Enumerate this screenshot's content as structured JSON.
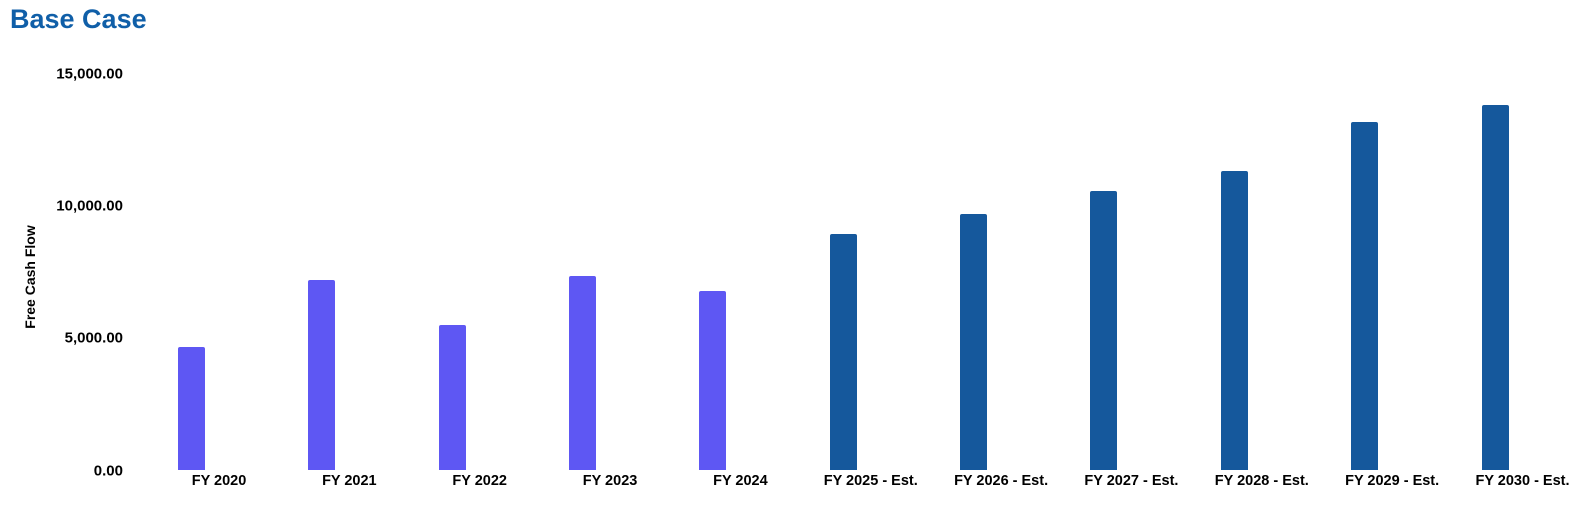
{
  "page": {
    "background_color": "#ffffff"
  },
  "chart_data": {
    "type": "bar",
    "title": "Base Case",
    "title_color": "#105FA8",
    "xlabel": "",
    "ylabel": "Free Cash Flow",
    "ylim": [
      0,
      15000
    ],
    "grid": false,
    "legend": false,
    "y_ticks": [
      {
        "value": 0,
        "label": "0.00"
      },
      {
        "value": 5000,
        "label": "5,000.00"
      },
      {
        "value": 10000,
        "label": "10,000.00"
      },
      {
        "value": 15000,
        "label": "15,000.00"
      }
    ],
    "categories": [
      "FY 2020",
      "FY 2021",
      "FY 2022",
      "FY 2023",
      "FY 2024",
      "FY 2025 - Est.",
      "FY 2026 - Est.",
      "FY 2027 - Est.",
      "FY 2028 - Est.",
      "FY 2029 - Est.",
      "FY 2030 - Est."
    ],
    "series": [
      {
        "name": "Free Cash Flow",
        "values": [
          4650,
          7200,
          5500,
          7350,
          6800,
          8950,
          9700,
          10550,
          11300,
          13150,
          13800
        ],
        "colors": [
          "#5E57F3",
          "#5E57F3",
          "#5E57F3",
          "#5E57F3",
          "#5E57F3",
          "#15589C",
          "#15589C",
          "#15589C",
          "#15589C",
          "#15589C",
          "#15589C"
        ]
      }
    ],
    "bar_color_historical": "#5E57F3",
    "bar_color_estimate": "#15589C"
  }
}
